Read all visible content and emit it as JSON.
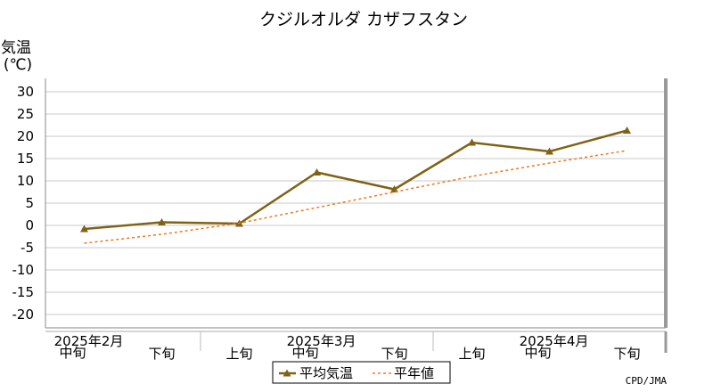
{
  "chart_data": {
    "type": "line",
    "title": "クジルオルダ カザフスタン",
    "ylabel_line1": "気温",
    "ylabel_line2": "(℃)",
    "ylim": [
      -23,
      33
    ],
    "yticks": [
      30,
      25,
      20,
      15,
      10,
      5,
      0,
      -5,
      -10,
      -15,
      -20
    ],
    "grid": true,
    "categories": [
      "中旬",
      "下旬",
      "上旬",
      "中旬",
      "下旬",
      "上旬",
      "中旬",
      "下旬"
    ],
    "month_labels": [
      {
        "label": "2025年2月",
        "category_index": 0
      },
      {
        "label": "2025年3月",
        "category_index": 3
      },
      {
        "label": "2025年4月",
        "category_index": 6
      }
    ],
    "series": [
      {
        "name": "平均気温",
        "color": "#7f6215",
        "style": "solid-marker",
        "values": [
          -0.8,
          0.7,
          0.4,
          11.9,
          8.1,
          18.6,
          16.6,
          21.3
        ]
      },
      {
        "name": "平年値",
        "color": "#f07820",
        "style": "dashed",
        "values": [
          -4.0,
          -2.0,
          0.5,
          4.0,
          7.5,
          11.0,
          14.0,
          16.8
        ]
      }
    ],
    "legend": "bottom-center",
    "credit": "CPD/JMA"
  }
}
